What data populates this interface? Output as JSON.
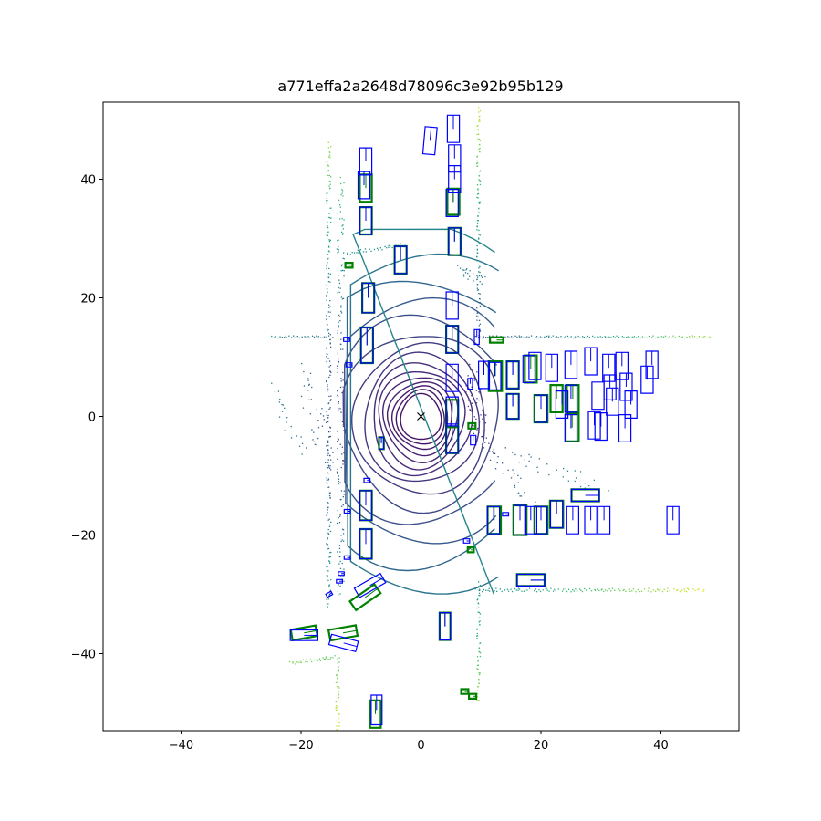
{
  "chart_data": {
    "type": "scatter",
    "title": "a771effa2a2648d78096c3e92b95b129",
    "xlabel": "",
    "ylabel": "",
    "xlim": [
      -53,
      53
    ],
    "ylim": [
      -53,
      53
    ],
    "x_ticks": [
      -40,
      -20,
      0,
      20,
      40
    ],
    "y_ticks": [
      -40,
      -20,
      0,
      20,
      40
    ],
    "x_tick_labels": [
      "−40",
      "−20",
      "0",
      "20",
      "40"
    ],
    "y_tick_labels": [
      "−40",
      "−20",
      "0",
      "20",
      "40"
    ],
    "grid": false,
    "ego_marker": {
      "x": 0,
      "y": 0,
      "symbol": "x"
    },
    "colors": {
      "ground_truth": "#008000",
      "prediction": "#0000ff",
      "lidar_near": "#3b0f70",
      "lidar_mid": "#2a788e",
      "lidar_far": "#fde725"
    },
    "ground_truth_boxes": [
      {
        "x": -9.2,
        "y": 38.5,
        "w": 2.0,
        "l": 4.6,
        "yaw": 90
      },
      {
        "x": -9.2,
        "y": 33.0,
        "w": 2.0,
        "l": 4.6,
        "yaw": 90
      },
      {
        "x": 5.4,
        "y": 36.2,
        "w": 2.0,
        "l": 4.4,
        "yaw": 90
      },
      {
        "x": 5.6,
        "y": 29.5,
        "w": 2.0,
        "l": 4.6,
        "yaw": 90
      },
      {
        "x": -8.8,
        "y": 20.0,
        "w": 2.0,
        "l": 5.0,
        "yaw": 90
      },
      {
        "x": -9.0,
        "y": 12.0,
        "w": 2.0,
        "l": 6.0,
        "yaw": 90
      },
      {
        "x": 5.2,
        "y": 13.0,
        "w": 2.0,
        "l": 4.6,
        "yaw": 90
      },
      {
        "x": 12.4,
        "y": 6.8,
        "w": 2.2,
        "l": 5.0,
        "yaw": 90
      },
      {
        "x": 15.3,
        "y": 7.0,
        "w": 2.0,
        "l": 4.6,
        "yaw": 90
      },
      {
        "x": 18.3,
        "y": 8.0,
        "w": 2.0,
        "l": 4.6,
        "yaw": 90
      },
      {
        "x": 15.3,
        "y": 1.7,
        "w": 2.0,
        "l": 4.2,
        "yaw": 90
      },
      {
        "x": 20.0,
        "y": 1.3,
        "w": 2.2,
        "l": 4.6,
        "yaw": 90
      },
      {
        "x": 22.6,
        "y": 3.0,
        "w": 2.0,
        "l": 4.6,
        "yaw": 90
      },
      {
        "x": 25.3,
        "y": 3.0,
        "w": 2.0,
        "l": 4.6,
        "yaw": 90
      },
      {
        "x": 25.2,
        "y": -1.9,
        "w": 2.2,
        "l": 4.6,
        "yaw": 90
      },
      {
        "x": -3.4,
        "y": 26.4,
        "w": 2.0,
        "l": 4.6,
        "yaw": 90
      },
      {
        "x": -6.6,
        "y": -4.5,
        "w": 0.8,
        "l": 2.0,
        "yaw": 90
      },
      {
        "x": 5.2,
        "y": 0.5,
        "w": 2.0,
        "l": 4.6,
        "yaw": 90
      },
      {
        "x": 5.2,
        "y": -4.0,
        "w": 2.0,
        "l": 4.4,
        "yaw": 90
      },
      {
        "x": -9.2,
        "y": -15.0,
        "w": 2.0,
        "l": 5.0,
        "yaw": 90
      },
      {
        "x": -9.2,
        "y": -21.5,
        "w": 2.0,
        "l": 5.0,
        "yaw": 90
      },
      {
        "x": 12.2,
        "y": -17.5,
        "w": 2.2,
        "l": 4.6,
        "yaw": 90
      },
      {
        "x": 16.5,
        "y": -17.5,
        "w": 2.2,
        "l": 5.0,
        "yaw": 90
      },
      {
        "x": 20.0,
        "y": -17.5,
        "w": 2.2,
        "l": 4.6,
        "yaw": 90
      },
      {
        "x": 22.6,
        "y": -16.5,
        "w": 2.2,
        "l": 4.6,
        "yaw": 90
      },
      {
        "x": 27.4,
        "y": -13.3,
        "w": 2.0,
        "l": 4.6,
        "yaw": 0
      },
      {
        "x": 18.3,
        "y": -27.6,
        "w": 2.0,
        "l": 4.6,
        "yaw": 0
      },
      {
        "x": -9.3,
        "y": -30.5,
        "w": 1.8,
        "l": 5.0,
        "yaw": 35
      },
      {
        "x": -19.5,
        "y": -36.5,
        "w": 1.8,
        "l": 4.2,
        "yaw": 10
      },
      {
        "x": -13.0,
        "y": -36.5,
        "w": 1.8,
        "l": 4.6,
        "yaw": 10
      },
      {
        "x": 4.0,
        "y": -35.4,
        "w": 1.8,
        "l": 4.6,
        "yaw": 90
      },
      {
        "x": -7.6,
        "y": -50.2,
        "w": 1.8,
        "l": 4.6,
        "yaw": 90
      },
      {
        "x": -12.0,
        "y": 25.5,
        "w": 0.8,
        "l": 1.2,
        "yaw": 0
      },
      {
        "x": 12.6,
        "y": 12.9,
        "w": 0.9,
        "l": 2.2,
        "yaw": 0
      },
      {
        "x": 8.5,
        "y": -1.6,
        "w": 0.9,
        "l": 1.2,
        "yaw": 0
      },
      {
        "x": 8.3,
        "y": -22.5,
        "w": 0.8,
        "l": 1.0,
        "yaw": 0
      },
      {
        "x": 7.3,
        "y": -46.4,
        "w": 0.8,
        "l": 1.2,
        "yaw": 0
      },
      {
        "x": 8.6,
        "y": -47.2,
        "w": 0.8,
        "l": 1.2,
        "yaw": 0
      }
    ],
    "prediction_boxes": [
      {
        "x": 5.4,
        "y": 48.5,
        "w": 2.0,
        "l": 4.6,
        "yaw": 90
      },
      {
        "x": 1.5,
        "y": 46.5,
        "w": 2.0,
        "l": 4.6,
        "yaw": 85
      },
      {
        "x": -9.2,
        "y": 43.0,
        "w": 2.0,
        "l": 4.6,
        "yaw": 90
      },
      {
        "x": -9.5,
        "y": 39.0,
        "w": 2.0,
        "l": 4.6,
        "yaw": 90
      },
      {
        "x": 5.6,
        "y": 43.5,
        "w": 2.0,
        "l": 4.6,
        "yaw": 90
      },
      {
        "x": 5.6,
        "y": 40.0,
        "w": 2.0,
        "l": 4.6,
        "yaw": 90
      },
      {
        "x": 5.2,
        "y": 36.0,
        "w": 2.0,
        "l": 4.6,
        "yaw": 90
      },
      {
        "x": -9.2,
        "y": 33.0,
        "w": 2.0,
        "l": 4.6,
        "yaw": 90
      },
      {
        "x": 5.6,
        "y": 29.5,
        "w": 2.0,
        "l": 4.6,
        "yaw": 90
      },
      {
        "x": -3.4,
        "y": 26.4,
        "w": 2.0,
        "l": 4.6,
        "yaw": 90
      },
      {
        "x": -8.8,
        "y": 20.0,
        "w": 2.0,
        "l": 5.0,
        "yaw": 90
      },
      {
        "x": 5.2,
        "y": 18.7,
        "w": 2.0,
        "l": 4.6,
        "yaw": 90
      },
      {
        "x": -9.0,
        "y": 12.0,
        "w": 2.0,
        "l": 6.0,
        "yaw": 90
      },
      {
        "x": 5.2,
        "y": 13.0,
        "w": 2.0,
        "l": 4.6,
        "yaw": 90
      },
      {
        "x": 9.3,
        "y": 13.4,
        "w": 0.8,
        "l": 2.5,
        "yaw": 90
      },
      {
        "x": 5.2,
        "y": 6.5,
        "w": 2.0,
        "l": 4.6,
        "yaw": 90
      },
      {
        "x": 5.2,
        "y": 1.0,
        "w": 2.0,
        "l": 4.6,
        "yaw": 90
      },
      {
        "x": 5.2,
        "y": -3.9,
        "w": 2.0,
        "l": 4.6,
        "yaw": 90
      },
      {
        "x": 10.5,
        "y": 7.0,
        "w": 1.8,
        "l": 4.6,
        "yaw": 90
      },
      {
        "x": 12.3,
        "y": 6.8,
        "w": 2.0,
        "l": 4.6,
        "yaw": 90
      },
      {
        "x": 15.3,
        "y": 7.0,
        "w": 2.0,
        "l": 4.6,
        "yaw": 90
      },
      {
        "x": 18.0,
        "y": 8.0,
        "w": 2.0,
        "l": 4.6,
        "yaw": 90
      },
      {
        "x": 19.0,
        "y": 8.5,
        "w": 2.0,
        "l": 4.6,
        "yaw": 90
      },
      {
        "x": 21.8,
        "y": 8.2,
        "w": 2.0,
        "l": 4.6,
        "yaw": 90
      },
      {
        "x": 25.0,
        "y": 8.7,
        "w": 2.0,
        "l": 4.6,
        "yaw": 90
      },
      {
        "x": 28.3,
        "y": 9.3,
        "w": 2.0,
        "l": 4.6,
        "yaw": 90
      },
      {
        "x": 31.3,
        "y": 8.2,
        "w": 2.0,
        "l": 4.6,
        "yaw": 90
      },
      {
        "x": 33.5,
        "y": 8.5,
        "w": 2.0,
        "l": 4.6,
        "yaw": 90
      },
      {
        "x": 38.5,
        "y": 8.7,
        "w": 2.0,
        "l": 4.6,
        "yaw": 90
      },
      {
        "x": 37.7,
        "y": 6.2,
        "w": 2.0,
        "l": 4.6,
        "yaw": 90
      },
      {
        "x": 31.5,
        "y": 4.9,
        "w": 2.0,
        "l": 4.2,
        "yaw": 90
      },
      {
        "x": 34.2,
        "y": 5.0,
        "w": 2.0,
        "l": 4.6,
        "yaw": 90
      },
      {
        "x": 29.5,
        "y": 3.5,
        "w": 2.0,
        "l": 4.6,
        "yaw": 90
      },
      {
        "x": 15.3,
        "y": 1.7,
        "w": 2.0,
        "l": 4.2,
        "yaw": 90
      },
      {
        "x": 20.0,
        "y": 1.3,
        "w": 2.0,
        "l": 4.6,
        "yaw": 90
      },
      {
        "x": 23.5,
        "y": 2.0,
        "w": 2.0,
        "l": 4.6,
        "yaw": 90
      },
      {
        "x": 25.0,
        "y": 3.0,
        "w": 2.0,
        "l": 4.6,
        "yaw": 90
      },
      {
        "x": 31.9,
        "y": 2.5,
        "w": 2.0,
        "l": 4.6,
        "yaw": 90
      },
      {
        "x": 35.0,
        "y": 2.0,
        "w": 2.0,
        "l": 4.6,
        "yaw": 90
      },
      {
        "x": 28.9,
        "y": -1.5,
        "w": 2.0,
        "l": 4.6,
        "yaw": 90
      },
      {
        "x": 30.0,
        "y": -1.7,
        "w": 2.0,
        "l": 4.6,
        "yaw": 90
      },
      {
        "x": 34.0,
        "y": -2.0,
        "w": 2.0,
        "l": 4.6,
        "yaw": 90
      },
      {
        "x": 25.0,
        "y": -2.0,
        "w": 2.0,
        "l": 4.6,
        "yaw": 90
      },
      {
        "x": 12.1,
        "y": -17.5,
        "w": 2.0,
        "l": 4.6,
        "yaw": 90
      },
      {
        "x": 14.1,
        "y": -16.5,
        "w": 0.6,
        "l": 1.0,
        "yaw": 0
      },
      {
        "x": 16.5,
        "y": -17.5,
        "w": 2.0,
        "l": 5.0,
        "yaw": 90
      },
      {
        "x": 18.3,
        "y": -17.5,
        "w": 2.0,
        "l": 4.6,
        "yaw": 90
      },
      {
        "x": 20.0,
        "y": -17.5,
        "w": 2.0,
        "l": 4.6,
        "yaw": 90
      },
      {
        "x": 22.6,
        "y": -16.5,
        "w": 2.0,
        "l": 4.6,
        "yaw": 90
      },
      {
        "x": 25.3,
        "y": -17.5,
        "w": 2.0,
        "l": 4.6,
        "yaw": 90
      },
      {
        "x": 28.3,
        "y": -17.5,
        "w": 2.0,
        "l": 4.6,
        "yaw": 90
      },
      {
        "x": 30.5,
        "y": -17.5,
        "w": 2.0,
        "l": 4.6,
        "yaw": 90
      },
      {
        "x": 42.0,
        "y": -17.5,
        "w": 2.0,
        "l": 4.6,
        "yaw": 90
      },
      {
        "x": 27.4,
        "y": -13.3,
        "w": 2.0,
        "l": 4.6,
        "yaw": 0
      },
      {
        "x": 18.3,
        "y": -27.6,
        "w": 2.0,
        "l": 4.6,
        "yaw": 0
      },
      {
        "x": -9.2,
        "y": -15.0,
        "w": 2.0,
        "l": 5.0,
        "yaw": 90
      },
      {
        "x": -9.2,
        "y": -21.5,
        "w": 2.0,
        "l": 5.0,
        "yaw": 90
      },
      {
        "x": -8.5,
        "y": -28.5,
        "w": 1.8,
        "l": 5.0,
        "yaw": 30
      },
      {
        "x": -19.5,
        "y": -36.9,
        "w": 1.8,
        "l": 4.6,
        "yaw": 0
      },
      {
        "x": -12.9,
        "y": -38.2,
        "w": 1.8,
        "l": 4.6,
        "yaw": -15
      },
      {
        "x": 4.0,
        "y": -35.4,
        "w": 1.8,
        "l": 4.6,
        "yaw": 90
      },
      {
        "x": -7.4,
        "y": -49.5,
        "w": 1.8,
        "l": 5.0,
        "yaw": 90
      },
      {
        "x": -12.4,
        "y": 13.0,
        "w": 0.7,
        "l": 1.0,
        "yaw": 0
      },
      {
        "x": -12.0,
        "y": 8.7,
        "w": 0.7,
        "l": 1.0,
        "yaw": 0
      },
      {
        "x": -6.6,
        "y": -4.5,
        "w": 0.8,
        "l": 2.0,
        "yaw": 90
      },
      {
        "x": 8.7,
        "y": -4.0,
        "w": 0.9,
        "l": 1.6,
        "yaw": 90
      },
      {
        "x": 8.2,
        "y": 5.5,
        "w": 0.8,
        "l": 1.8,
        "yaw": 90
      },
      {
        "x": -9.0,
        "y": -10.8,
        "w": 0.7,
        "l": 1.0,
        "yaw": 0
      },
      {
        "x": -12.3,
        "y": -16.0,
        "w": 0.6,
        "l": 1.0,
        "yaw": 0
      },
      {
        "x": -12.3,
        "y": -23.8,
        "w": 0.6,
        "l": 1.0,
        "yaw": 0
      },
      {
        "x": -13.3,
        "y": -26.5,
        "w": 0.6,
        "l": 1.0,
        "yaw": 0
      },
      {
        "x": -13.6,
        "y": -27.8,
        "w": 0.6,
        "l": 1.0,
        "yaw": 0
      },
      {
        "x": -15.3,
        "y": -30.0,
        "w": 0.6,
        "l": 1.0,
        "yaw": 30
      },
      {
        "x": 7.6,
        "y": -21.0,
        "w": 0.7,
        "l": 1.0,
        "yaw": 0
      }
    ]
  }
}
